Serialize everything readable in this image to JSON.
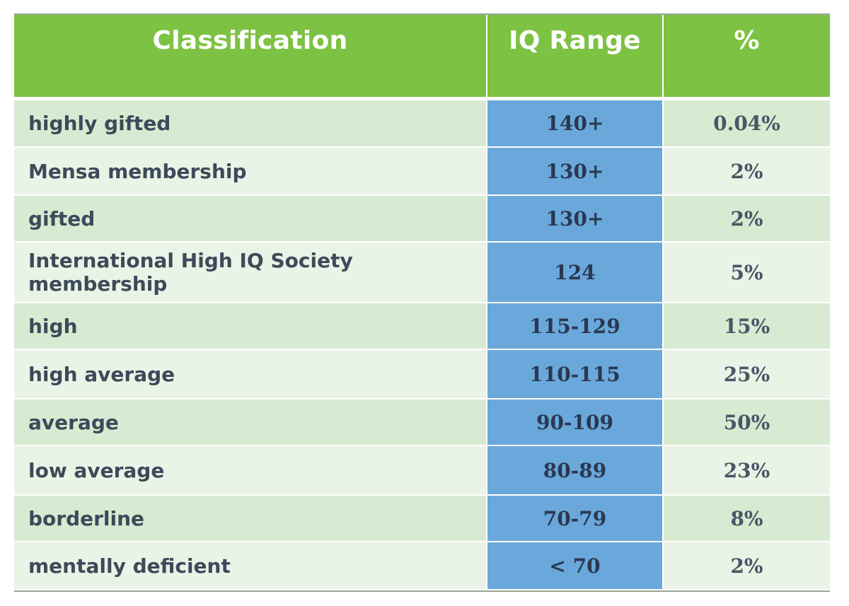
{
  "table": {
    "headers": {
      "classification": "Classification",
      "iq_range": "IQ Range",
      "percent": "%"
    },
    "rows": [
      {
        "classification": "highly gifted",
        "iq_range": "140+",
        "percent": "0.04%"
      },
      {
        "classification": "Mensa membership",
        "iq_range": "130+",
        "percent": "2%"
      },
      {
        "classification": "gifted",
        "iq_range": "130+",
        "percent": "2%"
      },
      {
        "classification": "International High IQ Society membership",
        "iq_range": "124",
        "percent": "5%"
      },
      {
        "classification": "high",
        "iq_range": "115-129",
        "percent": "15%"
      },
      {
        "classification": "high average",
        "iq_range": "110-115",
        "percent": "25%"
      },
      {
        "classification": "average",
        "iq_range": "90-109",
        "percent": "50%"
      },
      {
        "classification": "low average",
        "iq_range": "80-89",
        "percent": "23%"
      },
      {
        "classification": "borderline",
        "iq_range": "70-79",
        "percent": "8%"
      },
      {
        "classification": "mentally deficient",
        "iq_range": "< 70",
        "percent": "2%"
      }
    ]
  },
  "colors": {
    "header_green": "#7dc242",
    "row_green_dark": "#d9ead2",
    "row_green_light": "#eaf4e6",
    "range_blue": "#6aa8dc",
    "text_dark": "#3d4a5a"
  }
}
